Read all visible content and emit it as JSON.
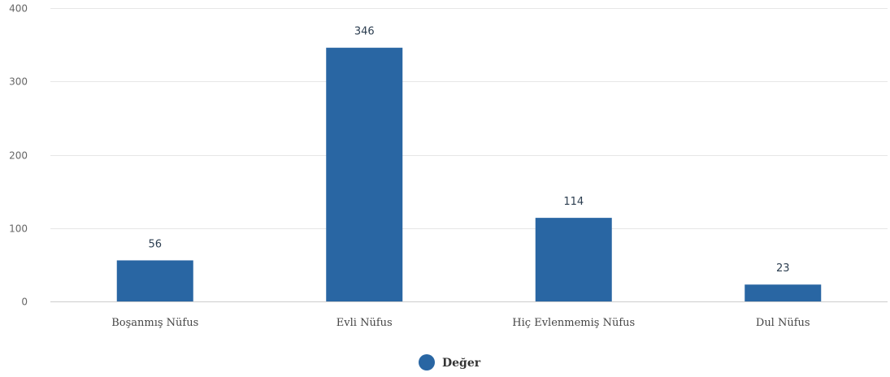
{
  "chart_data": {
    "type": "bar",
    "categories": [
      "Boşanmış Nüfus",
      "Evli Nüfus",
      "Hiç Evlenmemiş Nüfus",
      "Dul Nüfus"
    ],
    "series": [
      {
        "name": "Değer",
        "values": [
          56,
          346,
          114,
          23
        ]
      }
    ],
    "ylim": [
      0,
      400
    ],
    "yticks": [
      0,
      100,
      200,
      300,
      400
    ],
    "grid": true,
    "legend_position": "bottom-center",
    "bar_color": "#2966a3"
  }
}
